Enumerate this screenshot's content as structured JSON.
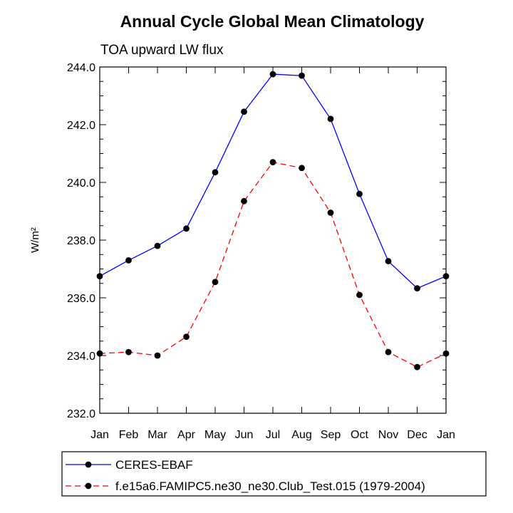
{
  "chart_data": {
    "type": "line",
    "title": "Annual Cycle Global Mean Climatology",
    "subtitle": "TOA upward LW flux",
    "ylabel": "W/m²",
    "xlabel": "",
    "categories": [
      "Jan",
      "Feb",
      "Mar",
      "Apr",
      "May",
      "Jun",
      "Jul",
      "Aug",
      "Sep",
      "Oct",
      "Nov",
      "Dec",
      "Jan"
    ],
    "ylim": [
      232.0,
      244.0
    ],
    "yticks": [
      "232.0",
      "234.0",
      "236.0",
      "238.0",
      "240.0",
      "242.0",
      "244.0"
    ],
    "grid": false,
    "legend_position": "bottom",
    "series": [
      {
        "name": "CERES-EBAF",
        "color": "#0000ff",
        "line_style": "solid",
        "marker": "filled-circle",
        "values": [
          236.75,
          237.3,
          237.8,
          238.4,
          240.35,
          242.45,
          243.75,
          243.7,
          242.2,
          239.6,
          237.27,
          236.33,
          236.75
        ]
      },
      {
        "name": "f.e15a6.FAMIPC5.ne30_ne30.Club_Test.015 (1979-2004)",
        "color": "#ff0000",
        "line_style": "dashed",
        "marker": "filled-circle",
        "values": [
          234.07,
          234.12,
          234.0,
          234.65,
          236.55,
          239.35,
          240.7,
          240.5,
          238.95,
          236.1,
          234.12,
          233.6,
          234.07
        ]
      }
    ]
  }
}
